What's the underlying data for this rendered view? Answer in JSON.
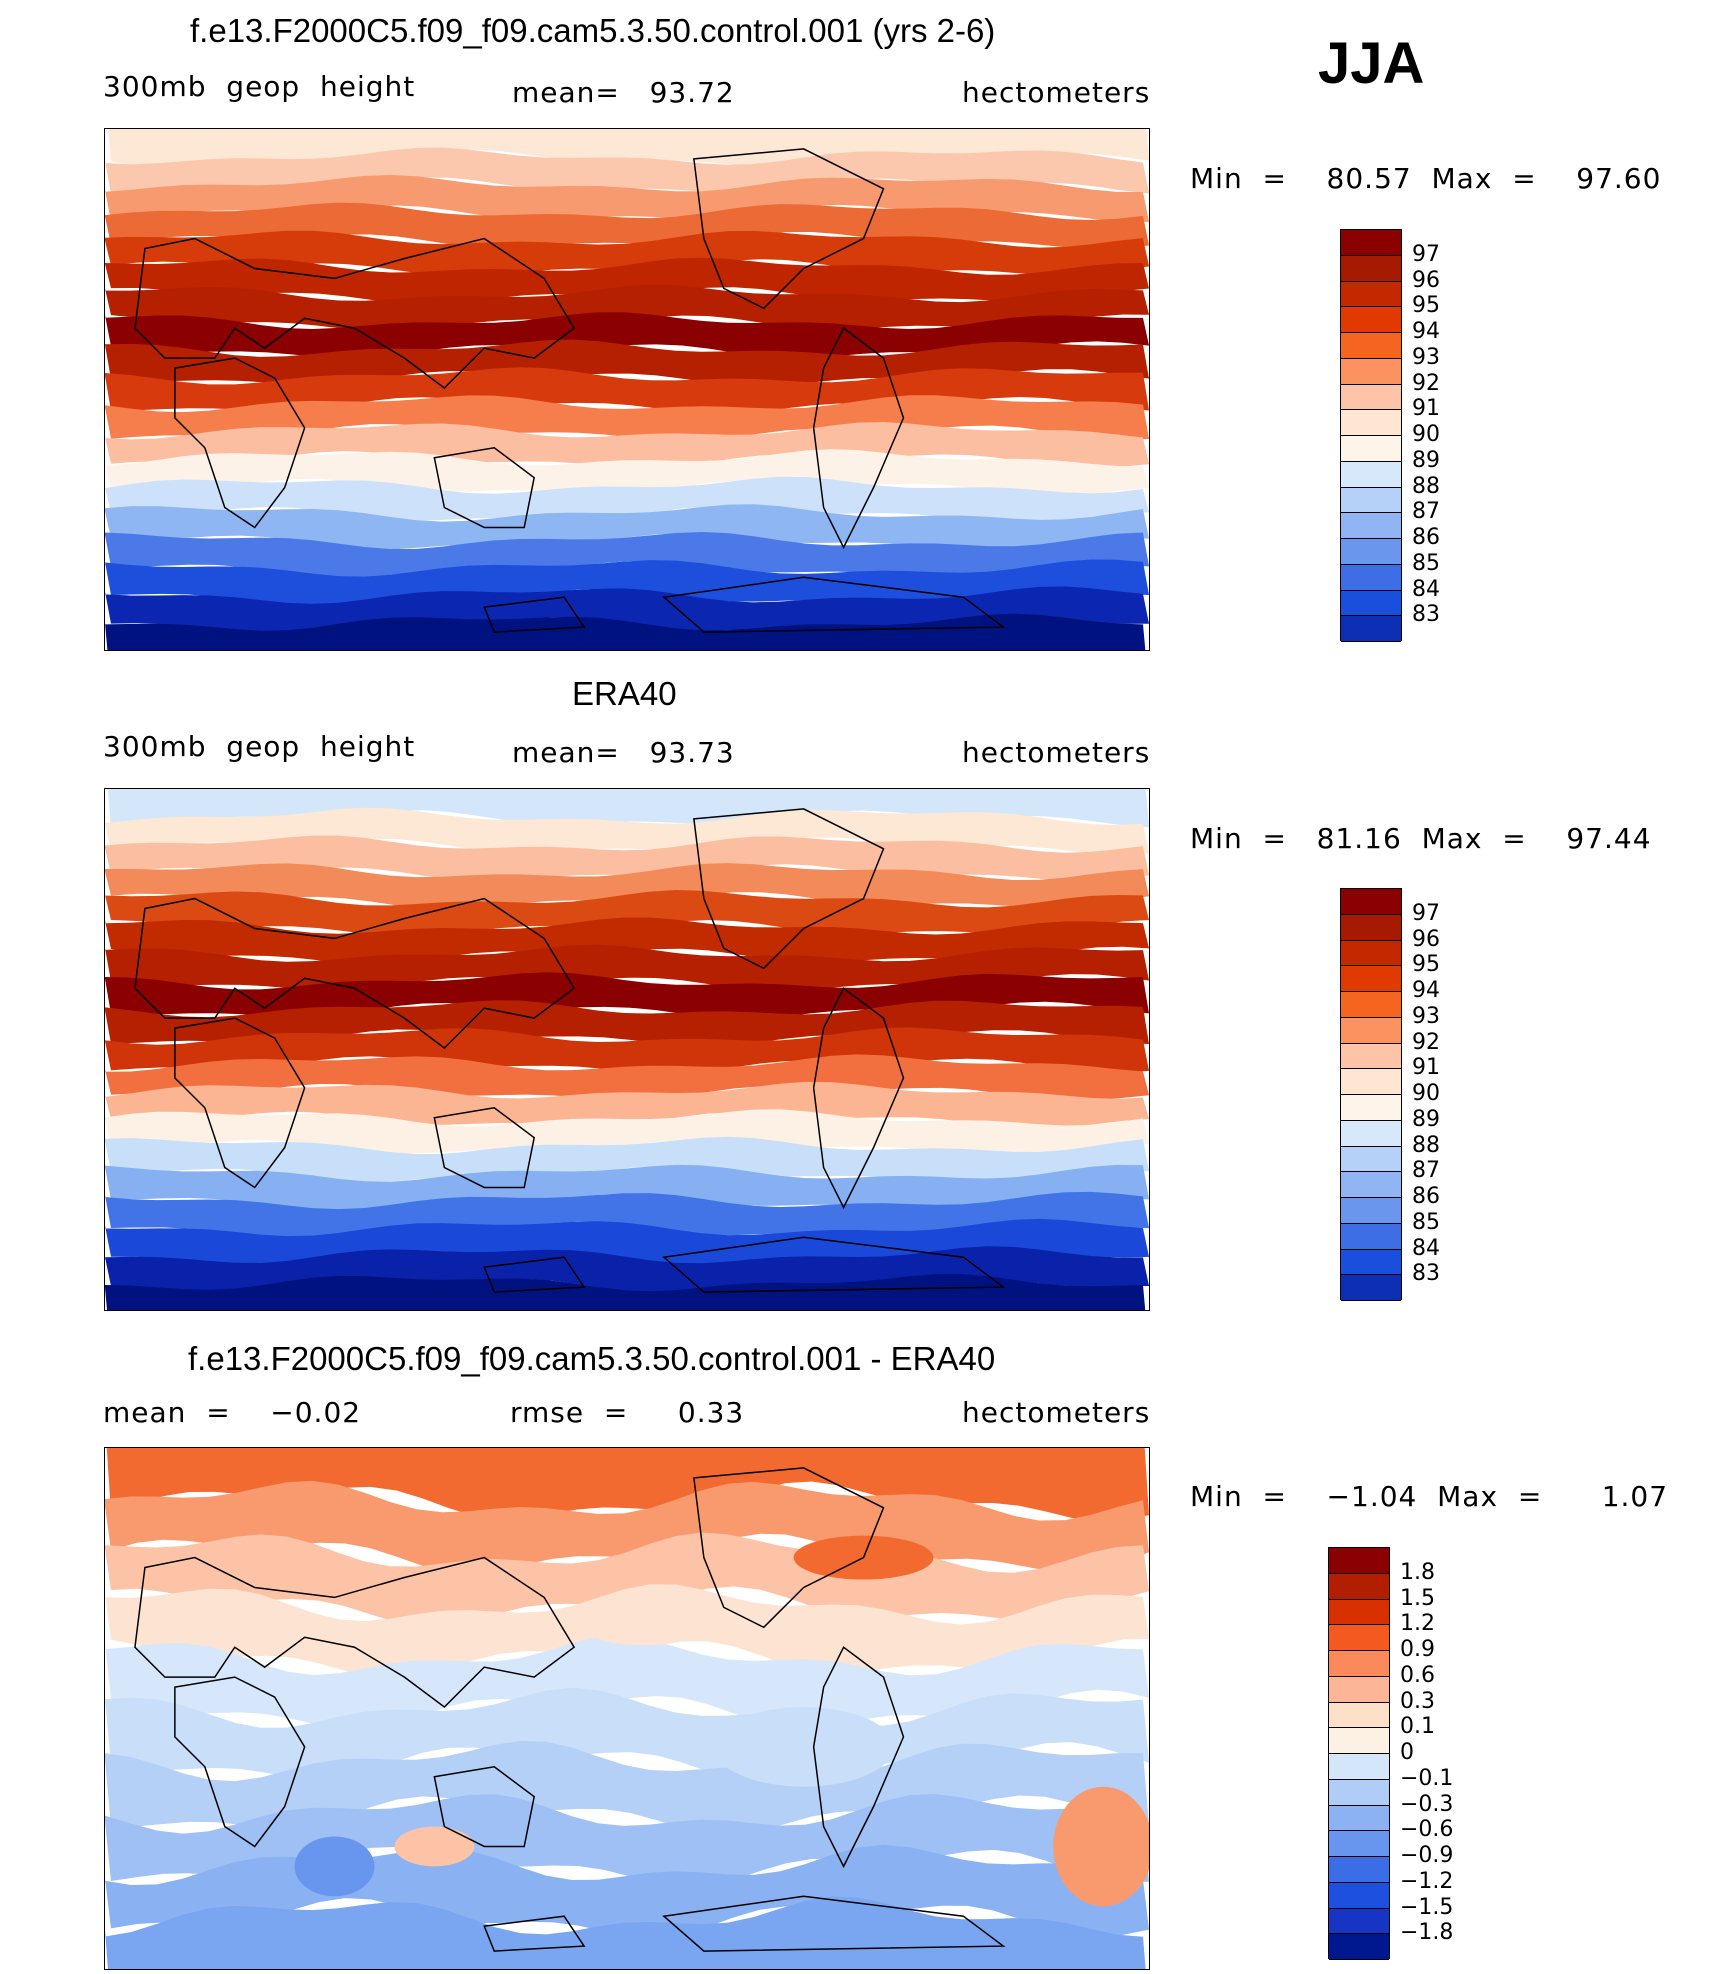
{
  "season": "JJA",
  "colors": {
    "warm": [
      "#8b0000",
      "#b21f00",
      "#d93000",
      "#f45a1f",
      "#fa8a5c",
      "#fcb596",
      "#fde0c8",
      "#fdf1e4"
    ],
    "cool": [
      "#d4e6fa",
      "#b0cdf7",
      "#8cb2f3",
      "#6895ee",
      "#3b6ee6",
      "#1d50de",
      "#1635c4",
      "#00188f",
      "#000a80"
    ]
  },
  "panels": [
    {
      "title": "f.e13.F2000C5.f09_f09.cam5.3.50.control.001 (yrs 2-6)",
      "left": "300mb  geop  height",
      "center": "mean=   93.72",
      "right": "hectometers",
      "minmax": "Min  =    80.57  Max  =    97.60",
      "colorbar": {
        "labels": [
          "97",
          "96",
          "95",
          "94",
          "93",
          "92",
          "91",
          "90",
          "89",
          "88",
          "87",
          "86",
          "85",
          "84",
          "83"
        ],
        "colors": [
          "#8b0000",
          "#a51a00",
          "#c42800",
          "#e03a00",
          "#f5651f",
          "#fb9260",
          "#fdc4a8",
          "#fde6d2",
          "#fdf5ea",
          "#d8e8fb",
          "#b6d1f8",
          "#91b5f3",
          "#6a96ee",
          "#3d6ee6",
          "#1a4fdd",
          "#0d2fb5"
        ]
      },
      "map_colors": [
        "#fde7d5",
        "#fcc8ad",
        "#f89a6f",
        "#ec6a35",
        "#d63c0a",
        "#bf2600",
        "#b42000",
        "#8b0000",
        "#b52100",
        "#d73a0d",
        "#f67d4c",
        "#fbbea0",
        "#fdf2e8",
        "#cde2fa",
        "#8db6f2",
        "#4b7ae8",
        "#1d4fdc",
        "#0b26b0",
        "#00127f"
      ]
    },
    {
      "title": "ERA40",
      "left": "300mb  geop  height",
      "center": "mean=   93.73",
      "right": "hectometers",
      "minmax": "Min  =   81.16  Max  =    97.44",
      "colorbar": {
        "labels": [
          "97",
          "96",
          "95",
          "94",
          "93",
          "92",
          "91",
          "90",
          "89",
          "88",
          "87",
          "86",
          "85",
          "84",
          "83"
        ],
        "colors": [
          "#8b0000",
          "#a51a00",
          "#c42800",
          "#e03a00",
          "#f5651f",
          "#fb9260",
          "#fdc4a8",
          "#fde6d2",
          "#fdf5ea",
          "#d8e8fb",
          "#b6d1f8",
          "#91b5f3",
          "#6a96ee",
          "#3d6ee6",
          "#1a4fdd",
          "#0d2fb5"
        ]
      },
      "map_colors": [
        "#d4e6fa",
        "#fde7d5",
        "#fbbea0",
        "#f28a5a",
        "#dc4a14",
        "#c22a00",
        "#b52100",
        "#8b0000",
        "#b52100",
        "#cf3509",
        "#f27040",
        "#fbb593",
        "#fdf0e5",
        "#c8dff9",
        "#86b0f2",
        "#4274e7",
        "#1a48d9",
        "#0a22aa",
        "#00127f"
      ]
    },
    {
      "title": "f.e13.F2000C5.f09_f09.cam5.3.50.control.001 - ERA40",
      "left": "mean  =    −0.02",
      "center": "rmse  =     0.33",
      "right": "hectometers",
      "minmax": "Min  =    −1.04  Max  =      1.07",
      "colorbar": {
        "labels": [
          "1.8",
          "1.5",
          "1.2",
          "0.9",
          "0.6",
          "0.3",
          "0.1",
          "0",
          "−0.1",
          "−0.3",
          "−0.6",
          "−0.9",
          "−1.2",
          "−1.5",
          "−1.8"
        ],
        "colors": [
          "#8b0000",
          "#b21f00",
          "#d93000",
          "#f45a1f",
          "#fa8a5c",
          "#fcb596",
          "#fde0c8",
          "#fdf1e4",
          "#d4e6fa",
          "#b0cdf7",
          "#8cb2f3",
          "#6895ee",
          "#3b6ee6",
          "#1d50de",
          "#1635c4",
          "#00188f"
        ]
      },
      "map_colors": [
        "#f26a30",
        "#f99a6e",
        "#fcc3a6",
        "#fde3d1",
        "#d6e7fb",
        "#c8def9",
        "#b4d0f7",
        "#9ec0f4",
        "#8ab2f2",
        "#7aa5f0"
      ]
    }
  ]
}
